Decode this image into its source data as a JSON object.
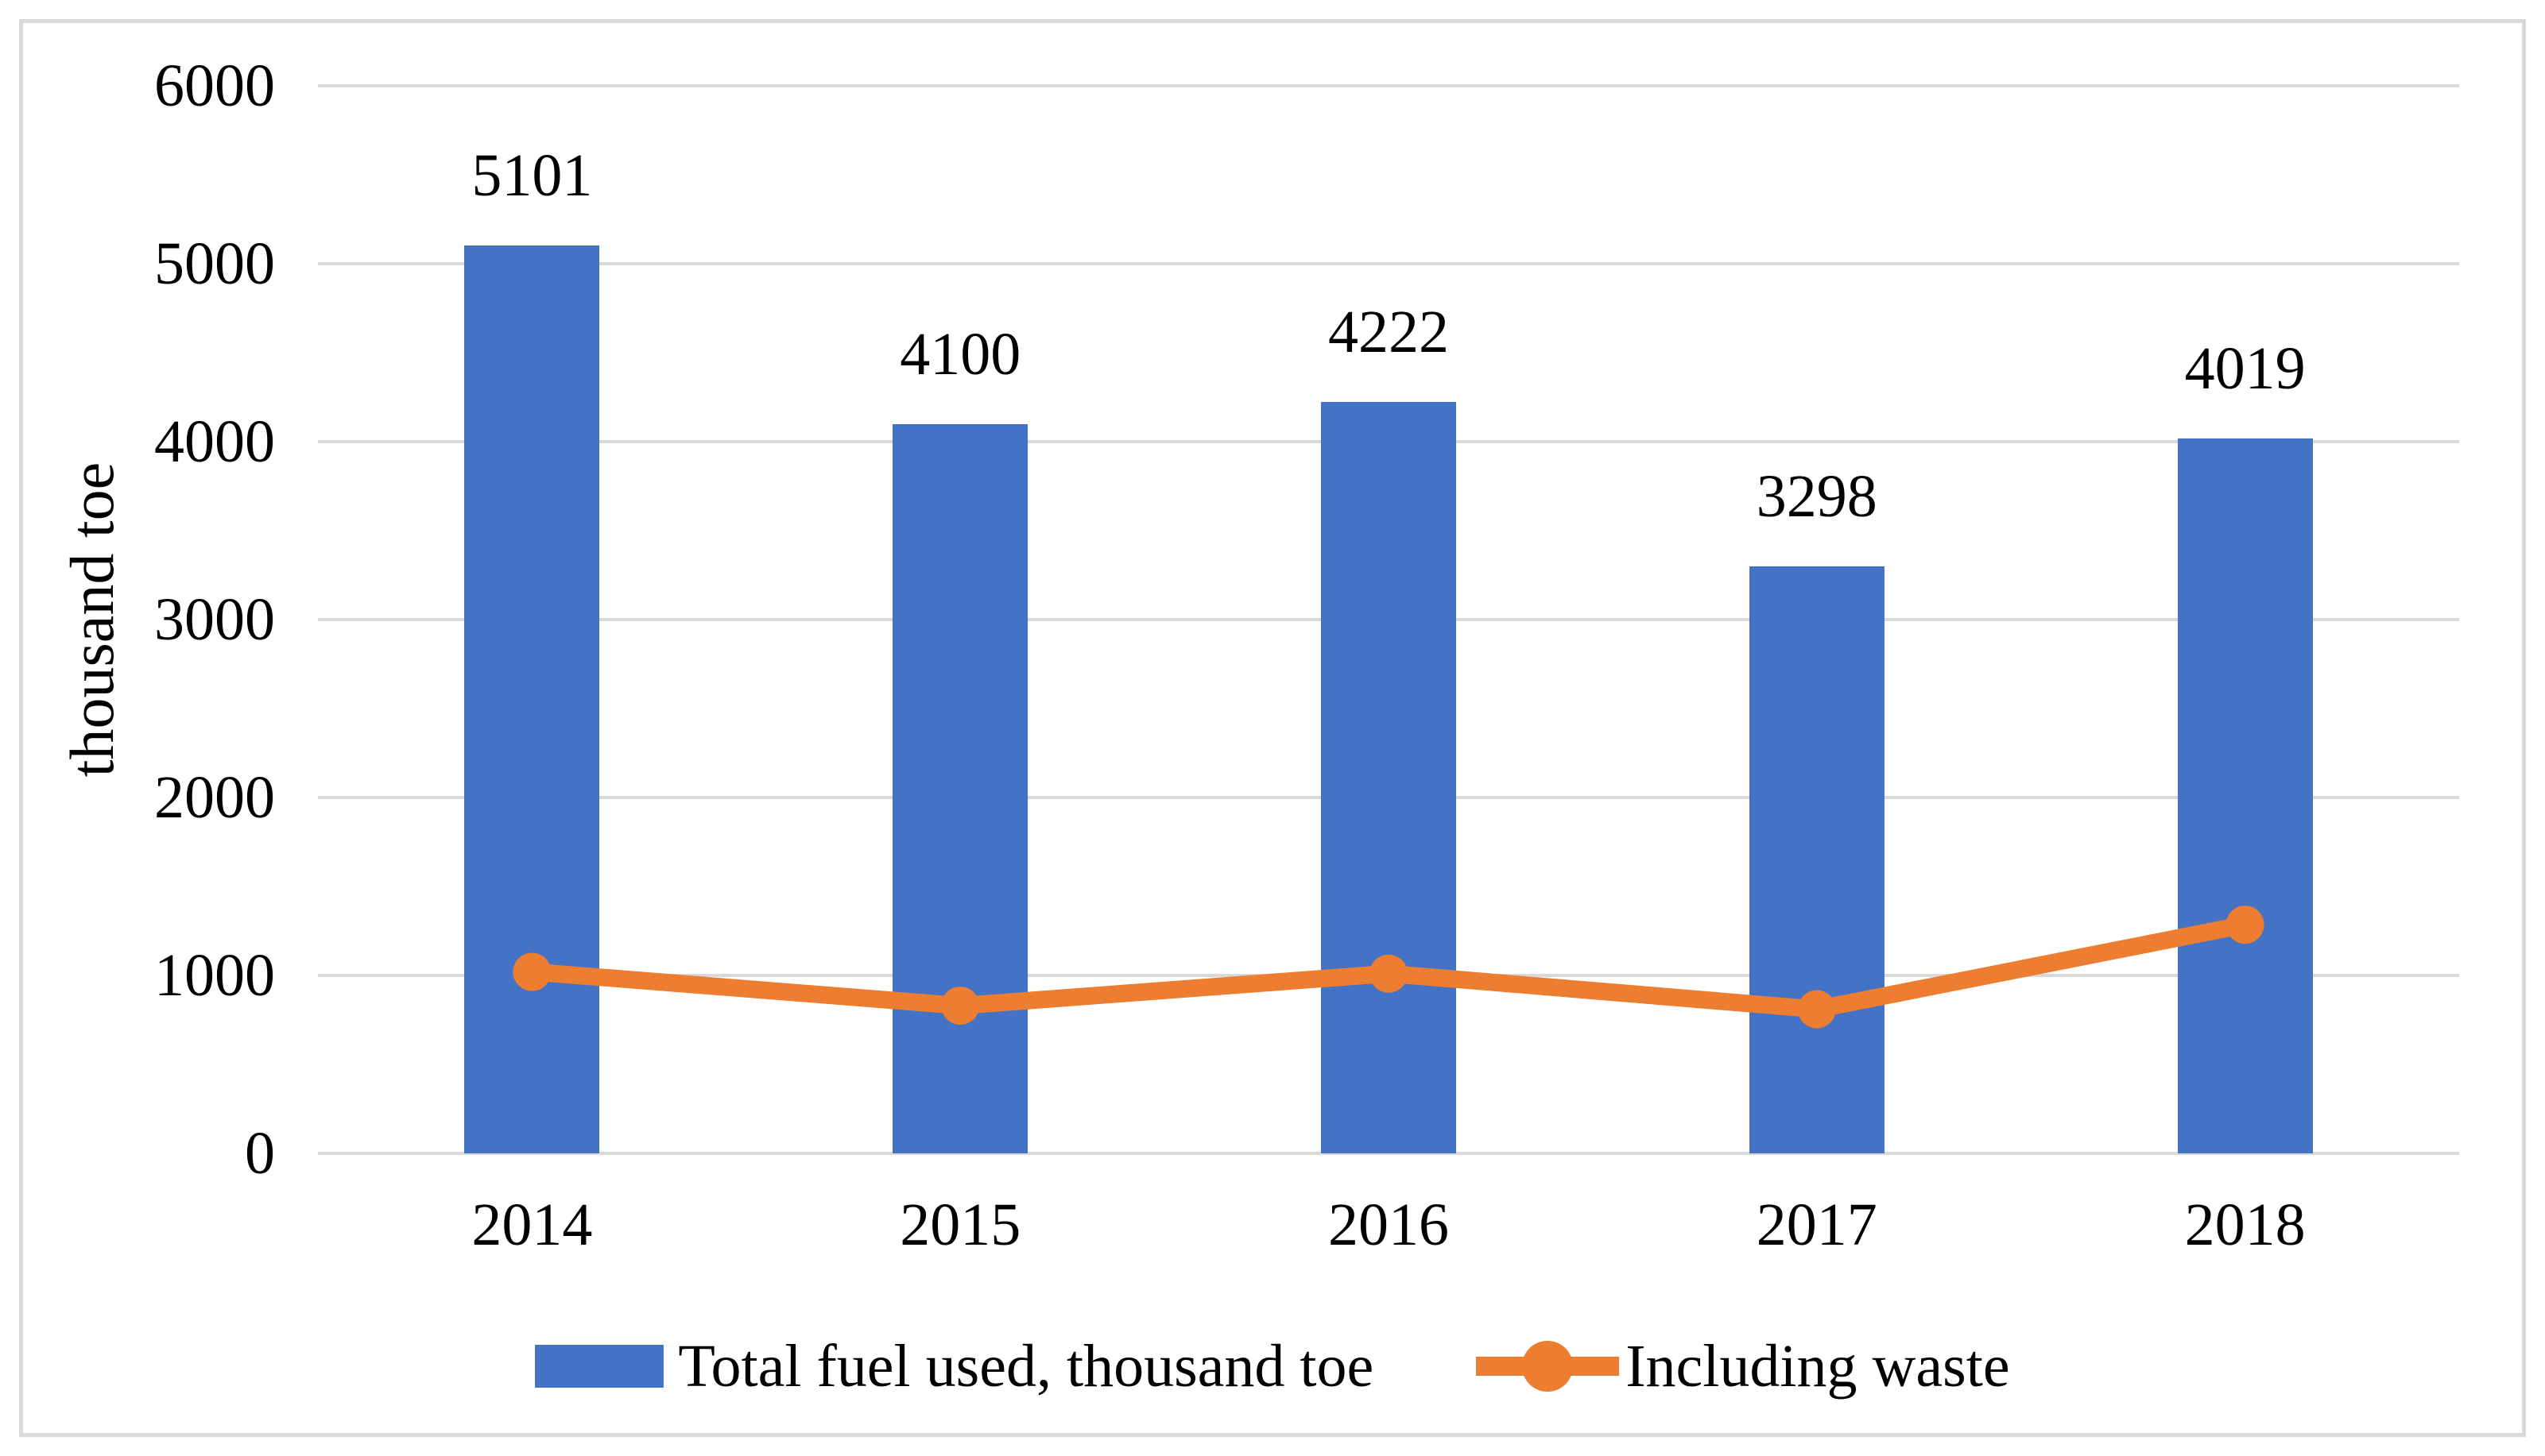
{
  "chart_data": {
    "type": "combo",
    "categories": [
      "2014",
      "2015",
      "2016",
      "2017",
      "2018"
    ],
    "series": [
      {
        "name": "Total fuel used, thousand toe",
        "type": "bar",
        "color": "#4472C4",
        "values": [
          5101,
          4100,
          4222,
          3298,
          4019
        ],
        "data_labels_shown": true
      },
      {
        "name": "Including waste",
        "type": "line",
        "color": "#ED7D31",
        "marker": "circle",
        "values": [
          1020,
          830,
          1010,
          810,
          1285
        ],
        "data_labels_shown": false
      }
    ],
    "xlabel": "",
    "ylabel": "thousand toe",
    "ylim": [
      0,
      6000
    ],
    "ytick_step": 1000,
    "yticks": [
      6000,
      5000,
      4000,
      3000,
      2000,
      1000,
      0
    ],
    "grid": "horizontal",
    "gridline_color": "#D9D9D9",
    "frame_border_color": "#D9D9D9",
    "text_color": "#000000",
    "legend_position": "bottom"
  }
}
